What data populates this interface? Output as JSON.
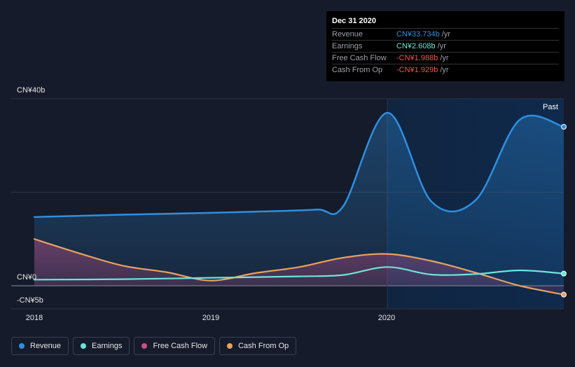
{
  "tooltip": {
    "date": "Dec 31 2020",
    "rows": [
      {
        "label": "Revenue",
        "value": "CN¥33.734b",
        "unit": "/yr",
        "color": "#2e8fe0"
      },
      {
        "label": "Earnings",
        "value": "CN¥2.608b",
        "unit": "/yr",
        "color": "#6fe3d6"
      },
      {
        "label": "Free Cash Flow",
        "value": "-CN¥1.988b",
        "unit": "/yr",
        "color": "#ff4d4d"
      },
      {
        "label": "Cash From Op",
        "value": "-CN¥1.929b",
        "unit": "/yr",
        "color": "#ff4d4d"
      }
    ]
  },
  "past_label": "Past",
  "legend": [
    {
      "label": "Revenue",
      "color": "#2e8fe0"
    },
    {
      "label": "Earnings",
      "color": "#6fe3d6"
    },
    {
      "label": "Free Cash Flow",
      "color": "#c9508a"
    },
    {
      "label": "Cash From Op",
      "color": "#e8a25e"
    }
  ],
  "chart_data": {
    "type": "line",
    "ylim": [
      -5,
      40
    ],
    "yticks": [
      {
        "value": 40,
        "label": "CN¥40b"
      },
      {
        "value": 0,
        "label": "CN¥0"
      },
      {
        "value": -5,
        "label": "-CN¥5b"
      }
    ],
    "xticks": [
      {
        "value": 2018.0,
        "label": "2018"
      },
      {
        "value": 2019.0,
        "label": "2019"
      },
      {
        "value": 2020.0,
        "label": "2020"
      }
    ],
    "xlim": [
      2017.94,
      2021.0
    ],
    "past_start": 2020.0,
    "series": [
      {
        "name": "Revenue",
        "color": "#2e8fe0",
        "fill": true,
        "x": [
          2018.0,
          2018.5,
          2019.0,
          2019.3,
          2019.6,
          2019.75,
          2020.0,
          2020.25,
          2020.5,
          2020.75,
          2021.0
        ],
        "y": [
          14.7,
          15.2,
          15.6,
          15.9,
          16.3,
          17.0,
          37.0,
          18.0,
          18.3,
          35.5,
          34.0
        ]
      },
      {
        "name": "Earnings",
        "color": "#6fe3d6",
        "fill": false,
        "x": [
          2018.0,
          2018.5,
          2019.0,
          2019.5,
          2019.75,
          2020.0,
          2020.25,
          2020.5,
          2020.75,
          2021.0
        ],
        "y": [
          1.3,
          1.4,
          1.7,
          2.0,
          2.3,
          4.0,
          2.4,
          2.5,
          3.3,
          2.6
        ]
      },
      {
        "name": "Free Cash Flow",
        "color": "#c9508a",
        "fill": false,
        "x": [],
        "y": []
      },
      {
        "name": "Cash From Op",
        "color": "#e8a25e",
        "fill": true,
        "x": [
          2018.0,
          2018.25,
          2018.5,
          2018.75,
          2019.0,
          2019.25,
          2019.5,
          2019.75,
          2020.0,
          2020.25,
          2020.5,
          2020.75,
          2021.0
        ],
        "y": [
          10.0,
          7.0,
          4.3,
          2.9,
          1.1,
          2.7,
          4.0,
          6.0,
          6.8,
          5.3,
          2.8,
          0.0,
          -1.9
        ]
      }
    ]
  }
}
